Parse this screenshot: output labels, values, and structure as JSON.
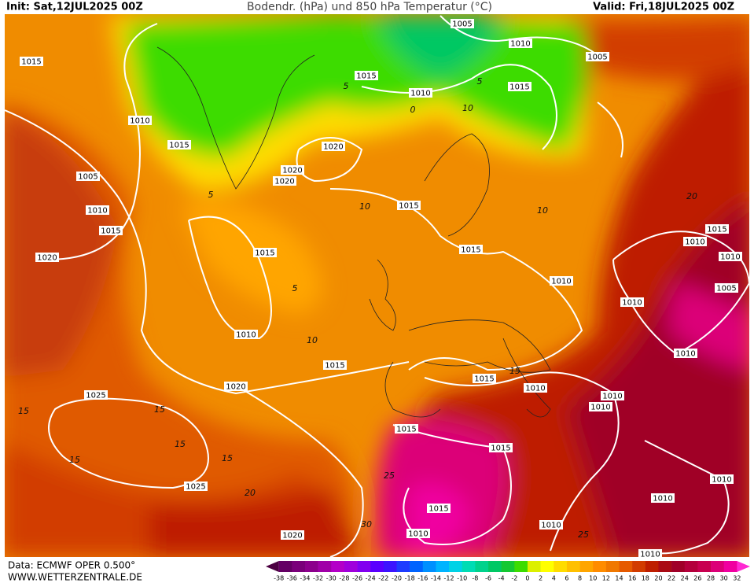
{
  "header": {
    "init": "Init: Sat,12JUL2025 00Z",
    "title": "Bodendr. (hPa) und 850 hPa Temperatur (°C)",
    "valid": "Valid: Fri,18JUL2025 00Z"
  },
  "footer": {
    "data": "Data: ECMWF OPER 0.500°",
    "site": "WWW.WETTERZENTRALE.DE"
  },
  "isobar_labels": [
    "1015",
    "1010",
    "1015",
    "1005",
    "1010",
    "1015",
    "1020",
    "1015",
    "1010",
    "1005",
    "1010",
    "1005",
    "1015",
    "1020",
    "1020",
    "1020",
    "1015",
    "1015",
    "1015",
    "1010",
    "1010",
    "1015",
    "1015",
    "1010",
    "1020",
    "1025",
    "1010",
    "1010",
    "1015",
    "1015",
    "1025",
    "1015",
    "1010",
    "1010",
    "1020",
    "1010",
    "1010",
    "1010",
    "1010",
    "1010",
    "1005",
    "1010",
    "1010",
    "1015"
  ],
  "isotherm_labels": [
    "5",
    "10",
    "5",
    "10",
    "5",
    "10",
    "15",
    "15",
    "15",
    "15",
    "15",
    "15",
    "20",
    "25",
    "30",
    "25",
    "20",
    "10",
    "5",
    "0"
  ],
  "colorbar": {
    "labels": [
      -38,
      -36,
      -34,
      -32,
      -30,
      -28,
      -26,
      -24,
      -22,
      -20,
      -18,
      -16,
      -14,
      -12,
      -10,
      -8,
      -6,
      -4,
      -2,
      0,
      2,
      4,
      6,
      8,
      10,
      12,
      14,
      16,
      18,
      20,
      22,
      24,
      26,
      28,
      30,
      32
    ],
    "colors": [
      "#4b0041",
      "#640064",
      "#7a007a",
      "#8c008c",
      "#a000a8",
      "#b400c8",
      "#a000dc",
      "#8200f0",
      "#5a00ff",
      "#3c14ff",
      "#1e3cff",
      "#0064ff",
      "#0090ff",
      "#00b4ff",
      "#00d2e6",
      "#00dcb4",
      "#00d28c",
      "#00c864",
      "#14c832",
      "#3cdc00",
      "#dcf000",
      "#ffff00",
      "#ffdc00",
      "#ffc000",
      "#ffa500",
      "#ff8c00",
      "#f07800",
      "#e65a00",
      "#d23c00",
      "#be1e00",
      "#aa0a14",
      "#a00028",
      "#b4003c",
      "#c80050",
      "#dc0078",
      "#f000a0",
      "#ff28d2"
    ]
  }
}
